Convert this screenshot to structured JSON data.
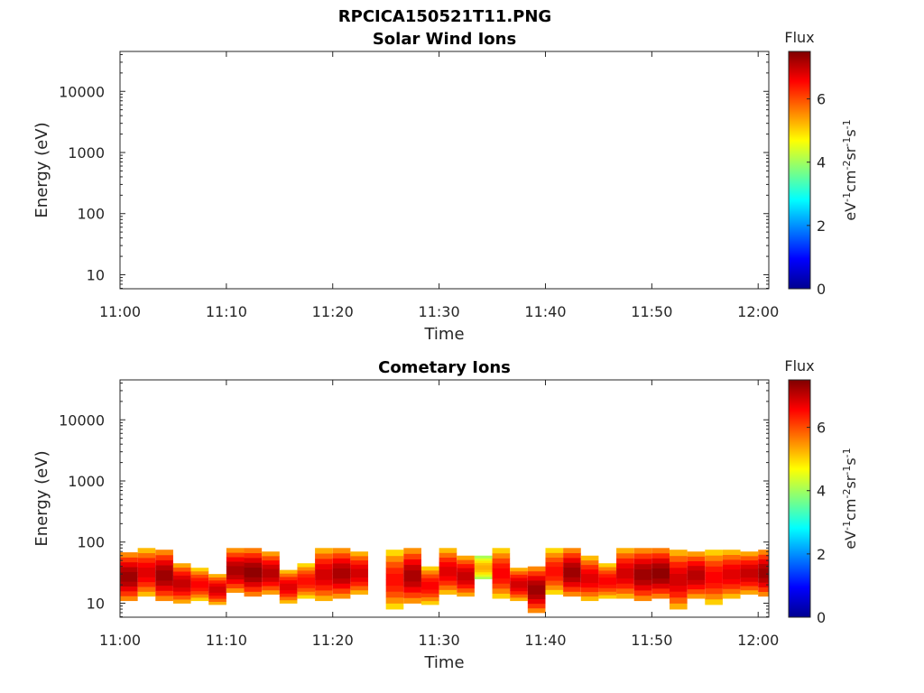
{
  "figure": {
    "filename_title": "RPCICA150521T11.PNG"
  },
  "colors": {
    "axis": "#262626",
    "colormap": [
      "#00008f",
      "#0000ff",
      "#007fff",
      "#00ffff",
      "#7fff7f",
      "#ffff00",
      "#ff7f00",
      "#ff0000",
      "#7f0000"
    ]
  },
  "chart_data": [
    {
      "type": "heatmap",
      "title": "Solar Wind Ions",
      "xlabel": "Time",
      "ylabel": "Energy (eV)",
      "x_ticks": [
        "11:00",
        "11:10",
        "11:20",
        "11:30",
        "11:40",
        "11:50",
        "12:00"
      ],
      "xlim": [
        "11:00",
        "12:01"
      ],
      "y_scale": "log",
      "y_ticks": [
        "10",
        "100",
        "1000",
        "10000"
      ],
      "ylim": [
        5.9,
        45000
      ],
      "colorbar": {
        "title": "Flux",
        "label": "eV-1cm-2sr-1s-1",
        "ticks": [
          "0",
          "2",
          "4",
          "6"
        ],
        "range": [
          0,
          7.5
        ]
      },
      "columns": []
    },
    {
      "type": "heatmap",
      "title": "Cometary Ions",
      "xlabel": "Time",
      "ylabel": "Energy (eV)",
      "x_ticks": [
        "11:00",
        "11:10",
        "11:20",
        "11:30",
        "11:40",
        "11:50",
        "12:00"
      ],
      "xlim": [
        "11:00",
        "12:01"
      ],
      "y_scale": "log",
      "y_ticks": [
        "10",
        "100",
        "1000",
        "10000"
      ],
      "ylim": [
        5.9,
        45000
      ],
      "colorbar": {
        "title": "Flux",
        "label": "eV-1cm-2sr-1s-1",
        "ticks": [
          "0",
          "2",
          "4",
          "6"
        ],
        "range": [
          0,
          7.5
        ]
      },
      "columns": [
        {
          "t0": "11:00:00",
          "t1": "11:01:40",
          "emin": 11,
          "emax": 68,
          "peak": 7.3
        },
        {
          "t0": "11:01:40",
          "t1": "11:03:20",
          "emin": 13,
          "emax": 80,
          "peak": 6.8
        },
        {
          "t0": "11:03:20",
          "t1": "11:05:00",
          "emin": 11,
          "emax": 75,
          "peak": 7.3
        },
        {
          "t0": "11:05:00",
          "t1": "11:06:40",
          "emin": 10,
          "emax": 45,
          "peak": 7.0
        },
        {
          "t0": "11:06:40",
          "t1": "11:08:20",
          "emin": 11,
          "emax": 38,
          "peak": 6.6
        },
        {
          "t0": "11:08:20",
          "t1": "11:10:00",
          "emin": 9.5,
          "emax": 30,
          "peak": 6.9
        },
        {
          "t0": "11:10:00",
          "t1": "11:11:40",
          "emin": 15,
          "emax": 80,
          "peak": 7.2
        },
        {
          "t0": "11:11:40",
          "t1": "11:13:20",
          "emin": 13,
          "emax": 80,
          "peak": 7.4
        },
        {
          "t0": "11:13:20",
          "t1": "11:15:00",
          "emin": 14,
          "emax": 70,
          "peak": 7.1
        },
        {
          "t0": "11:15:00",
          "t1": "11:16:40",
          "emin": 10,
          "emax": 35,
          "peak": 6.8
        },
        {
          "t0": "11:16:40",
          "t1": "11:18:20",
          "emin": 12,
          "emax": 45,
          "peak": 6.5
        },
        {
          "t0": "11:18:20",
          "t1": "11:20:00",
          "emin": 11,
          "emax": 80,
          "peak": 6.9
        },
        {
          "t0": "11:20:00",
          "t1": "11:21:40",
          "emin": 12,
          "emax": 80,
          "peak": 7.2
        },
        {
          "t0": "11:21:40",
          "t1": "11:23:20",
          "emin": 14,
          "emax": 70,
          "peak": 6.9
        },
        {
          "t0": "11:25:00",
          "t1": "11:26:40",
          "emin": 8,
          "emax": 75,
          "peak": 6.5
        },
        {
          "t0": "11:26:40",
          "t1": "11:28:20",
          "emin": 10,
          "emax": 80,
          "peak": 7.2
        },
        {
          "t0": "11:28:20",
          "t1": "11:30:00",
          "emin": 9.5,
          "emax": 40,
          "peak": 6.6
        },
        {
          "t0": "11:30:00",
          "t1": "11:31:40",
          "emin": 14,
          "emax": 80,
          "peak": 6.8
        },
        {
          "t0": "11:31:40",
          "t1": "11:33:20",
          "emin": 13,
          "emax": 60,
          "peak": 7.0
        },
        {
          "t0": "11:33:20",
          "t1": "11:35:00",
          "emin": 25,
          "emax": 60,
          "peak": 5.3
        },
        {
          "t0": "11:35:00",
          "t1": "11:36:40",
          "emin": 12,
          "emax": 80,
          "peak": 6.6
        },
        {
          "t0": "11:36:40",
          "t1": "11:38:20",
          "emin": 11,
          "emax": 38,
          "peak": 6.9
        },
        {
          "t0": "11:38:20",
          "t1": "11:40:00",
          "emin": 7,
          "emax": 40,
          "peak": 7.3
        },
        {
          "t0": "11:40:00",
          "t1": "11:41:40",
          "emin": 14,
          "emax": 80,
          "peak": 6.5
        },
        {
          "t0": "11:41:40",
          "t1": "11:43:20",
          "emin": 13,
          "emax": 80,
          "peak": 7.3
        },
        {
          "t0": "11:43:20",
          "t1": "11:45:00",
          "emin": 11,
          "emax": 60,
          "peak": 6.8
        },
        {
          "t0": "11:45:00",
          "t1": "11:46:40",
          "emin": 12,
          "emax": 45,
          "peak": 6.6
        },
        {
          "t0": "11:46:40",
          "t1": "11:48:20",
          "emin": 12,
          "emax": 80,
          "peak": 6.9
        },
        {
          "t0": "11:48:20",
          "t1": "11:50:00",
          "emin": 11,
          "emax": 80,
          "peak": 7.3
        },
        {
          "t0": "11:50:00",
          "t1": "11:51:40",
          "emin": 12,
          "emax": 80,
          "peak": 7.4
        },
        {
          "t0": "11:51:40",
          "t1": "11:53:20",
          "emin": 8,
          "emax": 75,
          "peak": 6.9
        },
        {
          "t0": "11:53:20",
          "t1": "11:55:00",
          "emin": 12,
          "emax": 70,
          "peak": 7.1
        },
        {
          "t0": "11:55:00",
          "t1": "11:56:40",
          "emin": 9.5,
          "emax": 75,
          "peak": 6.6
        },
        {
          "t0": "11:56:40",
          "t1": "11:58:20",
          "emin": 12,
          "emax": 75,
          "peak": 6.8
        },
        {
          "t0": "11:58:20",
          "t1": "12:00:00",
          "emin": 14,
          "emax": 70,
          "peak": 7.0
        },
        {
          "t0": "12:00:00",
          "t1": "12:01:00",
          "emin": 13,
          "emax": 75,
          "peak": 7.3
        }
      ]
    }
  ]
}
